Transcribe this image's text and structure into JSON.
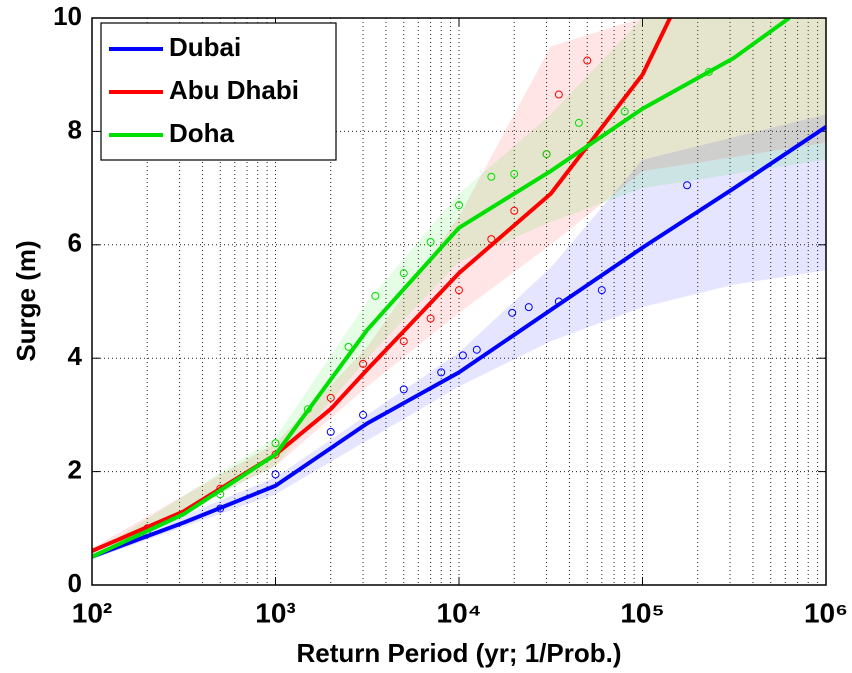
{
  "chart_data": {
    "type": "line",
    "xlabel": "Return Period (yr; 1/Prob.)",
    "ylabel": "Surge (m)",
    "xscale": "log",
    "xlim": [
      100,
      1000000
    ],
    "ylim": [
      0,
      10
    ],
    "xticks": [
      {
        "value": 100,
        "label": "10²"
      },
      {
        "value": 1000,
        "label": "10³"
      },
      {
        "value": 10000,
        "label": "10⁴"
      },
      {
        "value": 100000,
        "label": "10⁵"
      },
      {
        "value": 1000000,
        "label": "10⁶"
      }
    ],
    "yticks": [
      0,
      2,
      4,
      6,
      8,
      10
    ],
    "grid": true,
    "minor_grid": true,
    "legend": "upper-left",
    "series": [
      {
        "name": "Dubai",
        "color": "#0000ff",
        "x": [
          200,
          500,
          1000,
          2000,
          3000,
          5000,
          8000,
          10500,
          12500,
          19500,
          24000,
          35000,
          60000,
          175000
        ],
        "values": [
          0.9,
          1.35,
          1.95,
          2.7,
          3.0,
          3.45,
          3.75,
          4.05,
          4.15,
          4.8,
          4.9,
          5.0,
          5.2,
          7.05
        ],
        "line_x": [
          100,
          316,
          1000,
          3162,
          10000,
          31623,
          100000,
          316228,
          1000000
        ],
        "line_y": [
          0.5,
          1.1,
          1.75,
          2.85,
          3.75,
          4.85,
          5.95,
          7.0,
          8.08
        ],
        "band_x": [
          100,
          1000,
          10000,
          31623,
          100000,
          316228,
          1000000
        ],
        "band_lower": [
          0.45,
          1.6,
          3.5,
          4.3,
          4.9,
          5.3,
          5.55
        ],
        "band_upper": [
          0.55,
          1.9,
          4.1,
          5.6,
          7.5,
          7.9,
          8.3
        ]
      },
      {
        "name": "Abu Dhabi",
        "color": "#ff0000",
        "x": [
          200,
          500,
          1000,
          2000,
          3000,
          5000,
          7000,
          10000,
          15000,
          20000,
          30000,
          35000,
          50000
        ],
        "values": [
          1.0,
          1.7,
          2.3,
          3.3,
          3.9,
          4.3,
          4.7,
          5.2,
          6.1,
          6.6,
          7.6,
          8.65,
          9.25
        ],
        "line_x": [
          100,
          316,
          1000,
          1995,
          3162,
          10000,
          31623,
          100000,
          141254
        ],
        "line_y": [
          0.6,
          1.3,
          2.3,
          3.1,
          3.8,
          5.5,
          6.9,
          9.0,
          10
        ],
        "band_x": [
          100,
          1000,
          3162,
          10000,
          31623,
          100000,
          1000000
        ],
        "band_lower": [
          0.55,
          2.1,
          3.5,
          4.8,
          6.0,
          7.3,
          7.8
        ],
        "band_upper": [
          0.65,
          2.5,
          4.2,
          6.5,
          9.5,
          10,
          10
        ]
      },
      {
        "name": "Doha",
        "color": "#00e000",
        "x": [
          200,
          500,
          1000,
          1500,
          2500,
          3500,
          5000,
          7000,
          10000,
          15000,
          20000,
          30000,
          45000,
          80000,
          230000
        ],
        "values": [
          0.95,
          1.6,
          2.5,
          3.1,
          4.2,
          5.1,
          5.5,
          6.05,
          6.7,
          7.2,
          7.25,
          7.6,
          8.15,
          8.35,
          9.05
        ],
        "line_x": [
          100,
          316,
          1000,
          3162,
          10000,
          31623,
          100000,
          316228,
          630957
        ],
        "line_y": [
          0.5,
          1.25,
          2.3,
          4.5,
          6.3,
          7.3,
          8.4,
          9.3,
          10
        ],
        "band_x": [
          100,
          1000,
          3162,
          10000,
          31623,
          100000,
          1000000
        ],
        "band_lower": [
          0.45,
          2.1,
          4.0,
          5.7,
          6.4,
          7.0,
          7.5
        ],
        "band_upper": [
          0.55,
          2.6,
          5.0,
          6.9,
          8.3,
          10,
          10
        ]
      }
    ]
  }
}
